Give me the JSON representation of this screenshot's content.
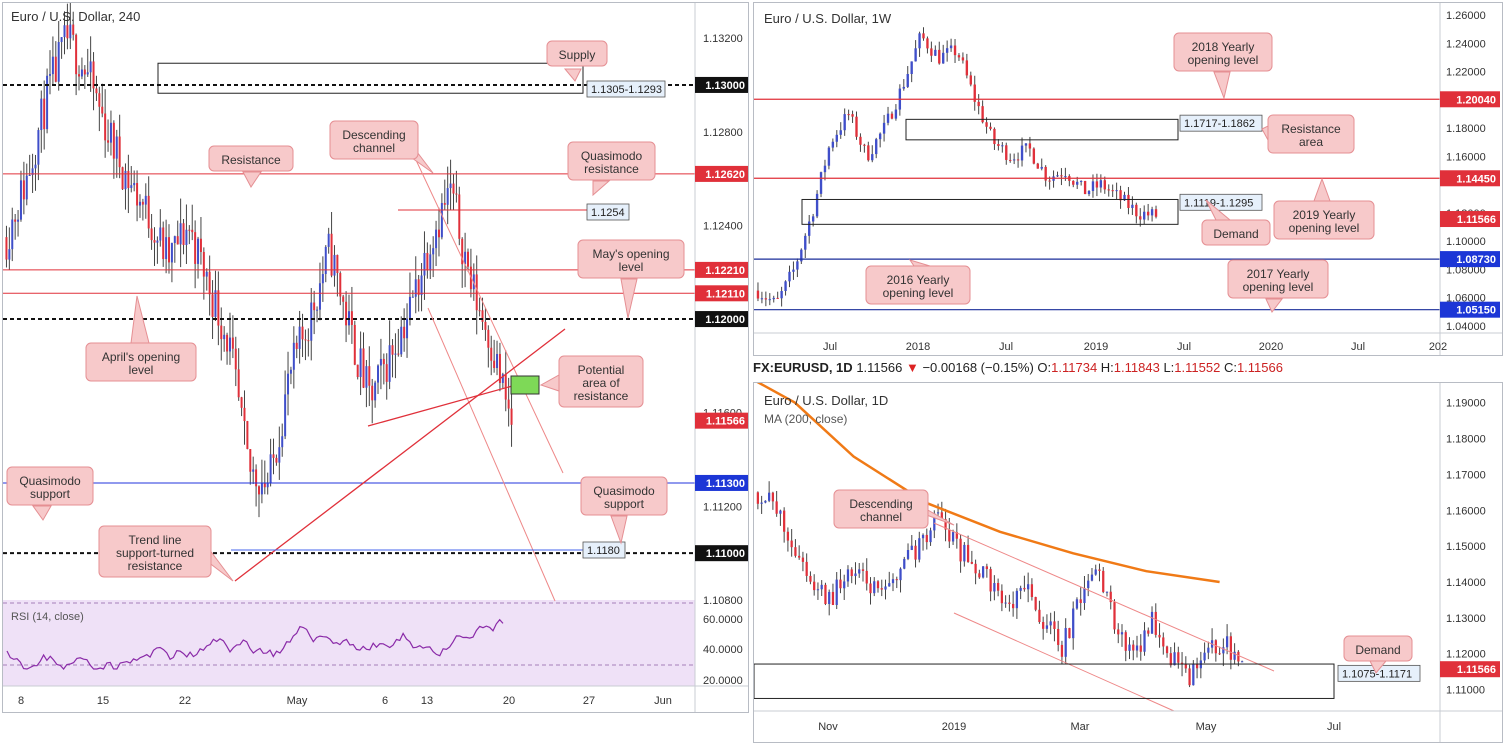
{
  "theme": {
    "up": "#3f4ec9",
    "down": "#e0303a",
    "line_red": "#e0303a",
    "line_blue": "#2233dd",
    "callout_fill": "#f7c9ca",
    "callout_stroke": "#e58f93",
    "price_tag_red": "#e0303a",
    "price_tag_blue": "#1c36d6",
    "price_tag_black": "#111111",
    "rsi_fill": "#efe1f7",
    "rsi_line": "#8a2aa8",
    "ma_line": "#f07a16",
    "info_box_fill": "#e6f0fb"
  },
  "charts": {
    "left": {
      "title": "Euro / U.S. Dollar, 240",
      "rsi_label": "RSI (14, close)",
      "y_ticks": [
        "1.13200",
        "1.12800",
        "1.12400",
        "1.12000",
        "1.11600",
        "1.11200",
        "1.10800"
      ],
      "rsi_ticks": [
        "60.0000",
        "40.0000",
        "20.0000"
      ],
      "x_ticks": [
        "8",
        "15",
        "22",
        "May",
        "6",
        "13",
        "20",
        "27",
        "Jun"
      ],
      "price_tags": [
        {
          "text": "1.13000",
          "style": "black"
        },
        {
          "text": "1.12620",
          "style": "red"
        },
        {
          "text": "1.12210",
          "style": "red"
        },
        {
          "text": "1.12110",
          "style": "red"
        },
        {
          "text": "1.12000",
          "style": "black"
        },
        {
          "text": "1.11566",
          "style": "red"
        },
        {
          "text": "1.11300",
          "style": "blue"
        },
        {
          "text": "1.11000",
          "style": "black"
        }
      ],
      "info_boxes": [
        "1.1305-1.1293",
        "1.1254",
        "1.1180"
      ],
      "callouts": [
        "Supply",
        "Descending channel",
        "Resistance",
        "Quasimodo resistance",
        "May's opening level",
        "April's opening level",
        "Potential area of resistance",
        "Quasimodo support",
        "Quasimodo support",
        "Trend line support-turned resistance"
      ]
    },
    "top_right": {
      "title": "Euro / U.S. Dollar, 1W",
      "y_ticks": [
        "1.26000",
        "1.24000",
        "1.22000",
        "1.18000",
        "1.16000",
        "1.12000",
        "1.10000",
        "1.08000",
        "1.06000",
        "1.04000"
      ],
      "x_ticks": [
        "Jul",
        "2018",
        "Jul",
        "2019",
        "Jul",
        "2020",
        "Jul",
        "202"
      ],
      "price_tags": [
        {
          "text": "1.20040",
          "style": "red"
        },
        {
          "text": "1.14450",
          "style": "red"
        },
        {
          "text": "1.11566",
          "style": "red"
        },
        {
          "text": "1.08730",
          "style": "blue"
        },
        {
          "text": "1.05150",
          "style": "blue"
        }
      ],
      "info_boxes": [
        "1.1717-1.1862",
        "1.1119-1.1295"
      ],
      "callouts": [
        "2018 Yearly opening level",
        "Resistance area",
        "2019 Yearly opening level",
        "Demand",
        "2016 Yearly opening level",
        "2017 Yearly opening level"
      ]
    },
    "info_bar": {
      "symbol": "FX:EURUSD, 1D",
      "last": "1.11566",
      "change": "−0.00168 (−0.15%)",
      "o_label": "O:",
      "o": "1.11734",
      "h_label": "H:",
      "h": "1.11843",
      "l_label": "L:",
      "l": "1.11552",
      "c_label": "C:",
      "c": "1.11566"
    },
    "bottom_right": {
      "title": "Euro / U.S. Dollar, 1D",
      "ma_label": "MA (200, close)",
      "y_ticks": [
        "1.19000",
        "1.18000",
        "1.17000",
        "1.16000",
        "1.15000",
        "1.14000",
        "1.13000",
        "1.12000",
        "1.11000"
      ],
      "x_ticks": [
        "Nov",
        "2019",
        "Mar",
        "May",
        "Jul"
      ],
      "price_tags": [
        {
          "text": "1.11566",
          "style": "red"
        }
      ],
      "info_boxes": [
        "1.1075-1.1171"
      ],
      "callouts": [
        "Descending channel",
        "Demand"
      ]
    }
  },
  "chart_data": [
    {
      "type": "candlestick",
      "title": "Euro / U.S. Dollar, 240",
      "ylim": [
        1.108,
        1.1335
      ],
      "x_ticks": [
        "8",
        "15",
        "22",
        "May",
        "6",
        "13",
        "20",
        "27",
        "Jun"
      ],
      "y_ticks": [
        1.132,
        1.128,
        1.124,
        1.12,
        1.116,
        1.112,
        1.108
      ],
      "close_path": [
        1.1235,
        1.126,
        1.1295,
        1.132,
        1.1305,
        1.128,
        1.126,
        1.1245,
        1.1225,
        1.124,
        1.1215,
        1.119,
        1.1135,
        1.113,
        1.1175,
        1.12,
        1.123,
        1.1195,
        1.1165,
        1.1185,
        1.1205,
        1.1235,
        1.1255,
        1.1215,
        1.119,
        1.1155
      ],
      "levels": [
        1.13,
        1.1262,
        1.1221,
        1.1211,
        1.12,
        1.113,
        1.11
      ],
      "zones": [
        [
          1.1293,
          1.1305
        ]
      ],
      "last": 1.11566,
      "rsi": {
        "label": "RSI (14, close)",
        "ticks": [
          60,
          40,
          20
        ]
      }
    },
    {
      "type": "candlestick",
      "title": "Euro / U.S. Dollar, 1W",
      "ylim": [
        1.035,
        1.265
      ],
      "x_ticks": [
        "Jul",
        "2018",
        "Jul",
        "2019",
        "Jul",
        "2020",
        "Jul",
        "202"
      ],
      "y_ticks": [
        1.26,
        1.24,
        1.22,
        1.18,
        1.16,
        1.12,
        1.1,
        1.08,
        1.06,
        1.04
      ],
      "close_path": [
        1.065,
        1.055,
        1.08,
        1.12,
        1.17,
        1.19,
        1.16,
        1.18,
        1.21,
        1.245,
        1.23,
        1.235,
        1.2,
        1.17,
        1.16,
        1.165,
        1.145,
        1.15,
        1.135,
        1.14,
        1.13,
        1.12,
        1.118
      ],
      "levels": [
        1.2004,
        1.1445,
        1.0873,
        1.0515
      ],
      "zones": [
        [
          1.1717,
          1.1862
        ],
        [
          1.1119,
          1.1295
        ]
      ],
      "last": 1.11566
    },
    {
      "type": "candlestick",
      "title": "Euro / U.S. Dollar, 1D",
      "ylim": [
        1.104,
        1.1955
      ],
      "x_ticks": [
        "Nov",
        "2019",
        "Mar",
        "May",
        "Jul"
      ],
      "y_ticks": [
        1.19,
        1.18,
        1.17,
        1.16,
        1.15,
        1.14,
        1.13,
        1.12,
        1.11
      ],
      "close_path": [
        1.165,
        1.16,
        1.15,
        1.14,
        1.135,
        1.143,
        1.14,
        1.135,
        1.145,
        1.15,
        1.16,
        1.15,
        1.145,
        1.14,
        1.132,
        1.138,
        1.128,
        1.122,
        1.135,
        1.145,
        1.125,
        1.12,
        1.13,
        1.12,
        1.112,
        1.12,
        1.123,
        1.118
      ],
      "ma_200": [
        [
          0,
          1.196
        ],
        [
          0.08,
          1.19
        ],
        [
          0.2,
          1.175
        ],
        [
          0.35,
          1.162
        ],
        [
          0.5,
          1.154
        ],
        [
          0.65,
          1.148
        ],
        [
          0.8,
          1.143
        ],
        [
          0.95,
          1.14
        ]
      ],
      "zones": [
        [
          1.1075,
          1.1171
        ]
      ],
      "last": 1.11566,
      "ma_label": "MA (200, close)"
    }
  ]
}
